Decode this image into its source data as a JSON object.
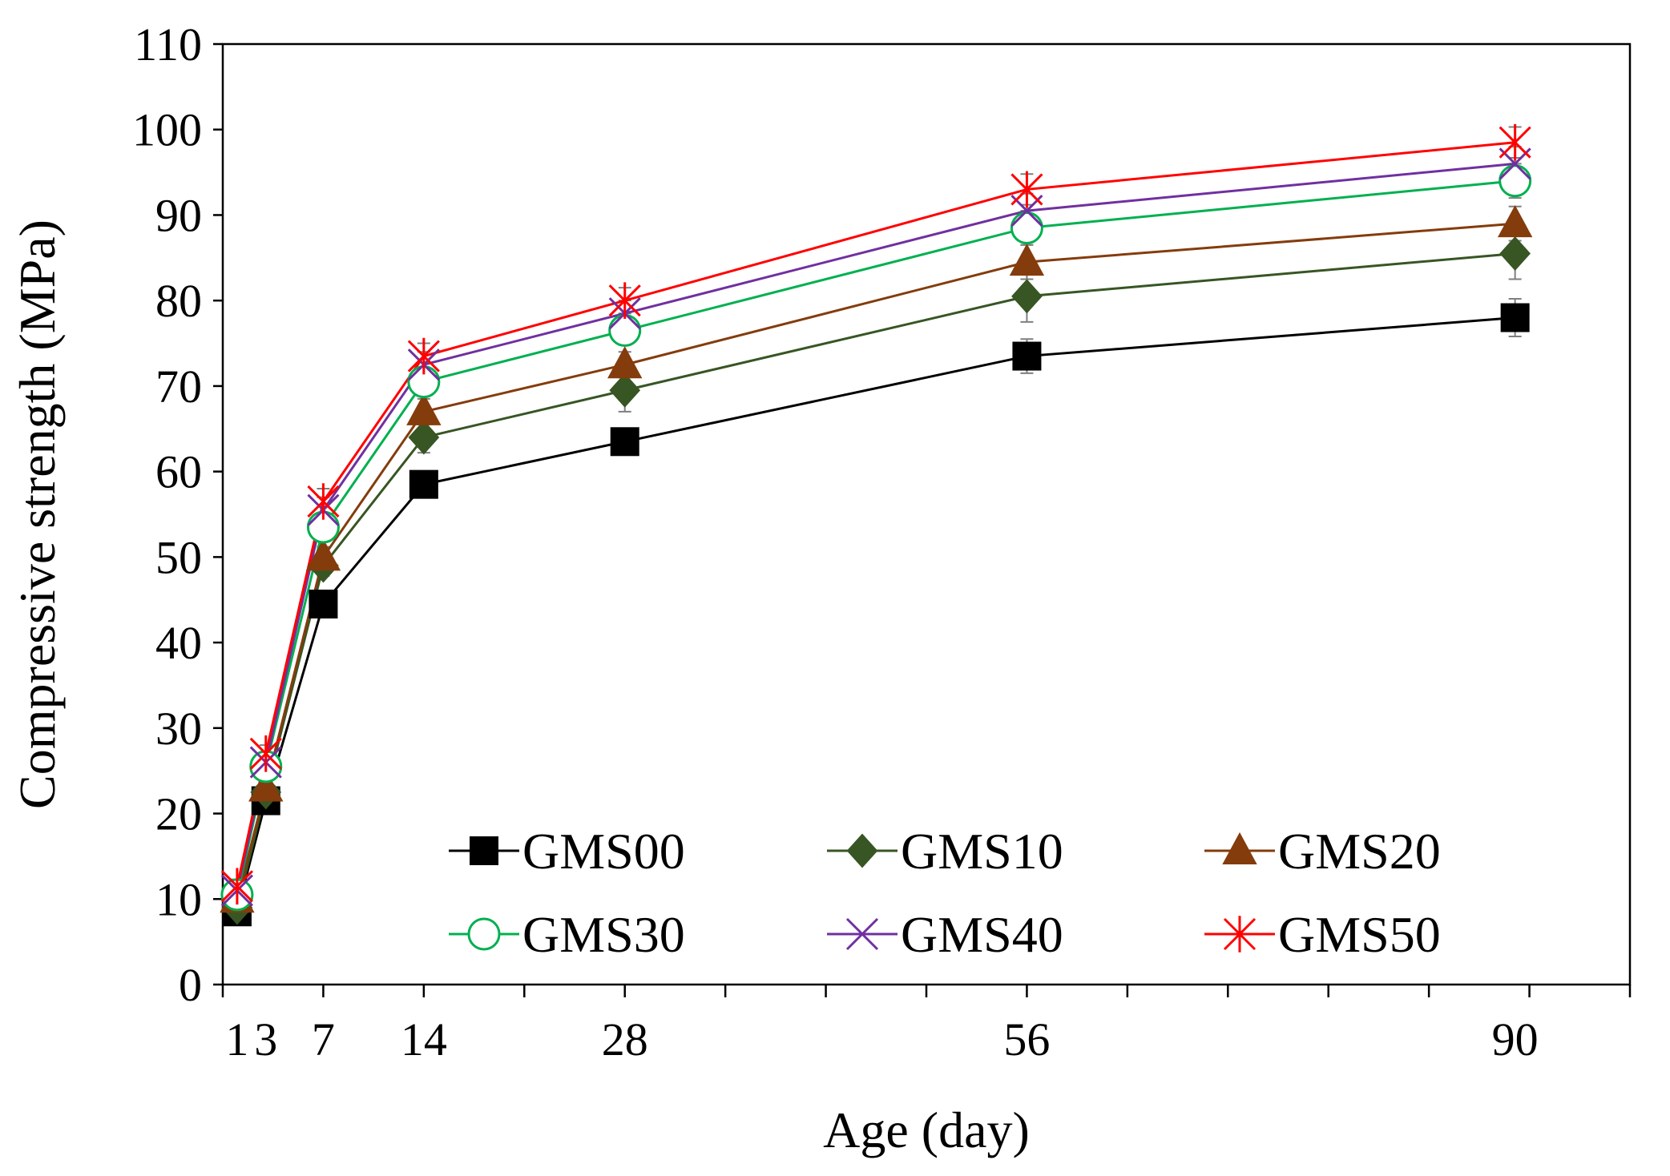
{
  "chart_data": {
    "type": "line",
    "title": "",
    "xlabel": "Age (day)",
    "ylabel": "Compressive strength (MPa)",
    "xlim": [
      0,
      98
    ],
    "ylim": [
      0,
      110
    ],
    "x_tick_values": [
      1,
      3,
      7,
      14,
      28,
      56,
      90
    ],
    "x_tick_labels": [
      "1",
      "3",
      "7",
      "14",
      "28",
      "56",
      "90"
    ],
    "x_minor_ticks": [
      0,
      7,
      14,
      21,
      28,
      35,
      42,
      49,
      56,
      63,
      70,
      77,
      84,
      91,
      98
    ],
    "y_ticks": [
      0,
      10,
      20,
      30,
      40,
      50,
      60,
      70,
      80,
      90,
      100,
      110
    ],
    "y_tick_labels": [
      "0",
      "10",
      "20",
      "30",
      "40",
      "50",
      "60",
      "70",
      "80",
      "90",
      "100",
      "110"
    ],
    "grid": false,
    "legend_position": "bottom-right, inside plot, 2 rows x 3 columns",
    "x": [
      1,
      3,
      7,
      14,
      28,
      56,
      90
    ],
    "series": [
      {
        "name": "GMS00",
        "color": "#000000",
        "marker": "square-filled",
        "values": [
          8.5,
          21.5,
          44.5,
          58.5,
          63.5,
          73.5,
          78.0
        ],
        "errors": [
          0.8,
          1.0,
          1.2,
          1.5,
          1.2,
          2.0,
          2.2
        ]
      },
      {
        "name": "GMS10",
        "color": "#375623",
        "marker": "diamond-filled",
        "values": [
          9.0,
          22.5,
          49.0,
          64.0,
          69.5,
          80.5,
          85.5
        ],
        "errors": [
          0.8,
          1.0,
          1.2,
          1.8,
          2.5,
          3.0,
          3.0
        ]
      },
      {
        "name": "GMS20",
        "color": "#843C0C",
        "marker": "triangle-filled",
        "values": [
          10.0,
          23.0,
          50.0,
          67.0,
          72.5,
          84.5,
          89.0
        ],
        "errors": [
          0.8,
          1.0,
          1.2,
          1.5,
          1.5,
          2.0,
          2.0
        ]
      },
      {
        "name": "GMS30",
        "color": "#00B050",
        "marker": "circle-open",
        "values": [
          10.5,
          25.5,
          53.5,
          70.5,
          76.5,
          88.5,
          94.0
        ],
        "errors": [
          0.8,
          1.0,
          1.5,
          1.5,
          1.5,
          2.0,
          2.0
        ]
      },
      {
        "name": "GMS40",
        "color": "#7030A0",
        "marker": "x",
        "values": [
          11.0,
          26.0,
          55.5,
          72.5,
          78.5,
          90.5,
          96.0
        ],
        "errors": [
          0.8,
          1.0,
          1.5,
          1.5,
          1.5,
          2.0,
          2.0
        ]
      },
      {
        "name": "GMS50",
        "color": "#FF0000",
        "marker": "star",
        "values": [
          11.5,
          27.0,
          56.5,
          73.5,
          80.0,
          93.0,
          98.5
        ],
        "errors": [
          0.8,
          1.0,
          1.5,
          1.5,
          1.5,
          1.8,
          1.8
        ]
      }
    ]
  }
}
